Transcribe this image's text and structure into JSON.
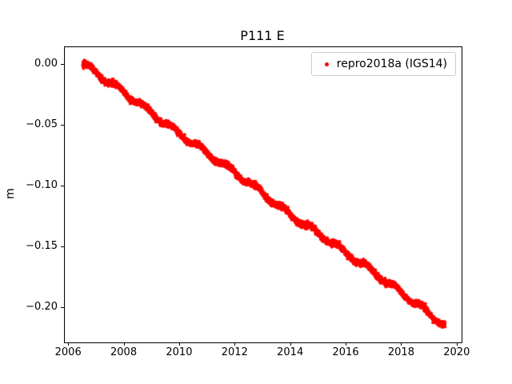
{
  "chart_data": {
    "type": "scatter",
    "title": "P111 E",
    "xlabel": "",
    "ylabel": "m",
    "xlim": [
      2005.85,
      2020.15
    ],
    "ylim": [
      -0.2285,
      0.0145
    ],
    "grid": false,
    "legend_position": "upper right",
    "xticks": {
      "values": [
        2006,
        2008,
        2010,
        2012,
        2014,
        2016,
        2018,
        2020
      ],
      "labels": [
        "2006",
        "2008",
        "2010",
        "2012",
        "2014",
        "2016",
        "2018",
        "2020"
      ]
    },
    "yticks": {
      "values": [
        0.0,
        -0.05,
        -0.1,
        -0.15,
        -0.2
      ],
      "labels": [
        "0.00",
        "−0.05",
        "−0.10",
        "−0.15",
        "−0.20"
      ]
    },
    "series": [
      {
        "name": "repro2018a (IGS14)",
        "color": "#ff0000",
        "marker": "dot",
        "x_start": 2006.5,
        "x_end": 2019.55,
        "samples_per_year": 365,
        "noise_sigma_m": 0.0012,
        "seasonal_amplitude_m": 0.002,
        "trend_slope_m_per_year": -0.01662,
        "anchor_points": [
          [
            2006.5,
            0.001
          ],
          [
            2007.0,
            -0.007
          ],
          [
            2008.0,
            -0.023
          ],
          [
            2009.0,
            -0.04
          ],
          [
            2010.0,
            -0.057
          ],
          [
            2011.0,
            -0.073
          ],
          [
            2012.0,
            -0.089
          ],
          [
            2013.0,
            -0.106
          ],
          [
            2014.0,
            -0.124
          ],
          [
            2015.0,
            -0.139
          ],
          [
            2016.0,
            -0.155
          ],
          [
            2017.0,
            -0.171
          ],
          [
            2018.0,
            -0.188
          ],
          [
            2019.0,
            -0.205
          ],
          [
            2019.55,
            -0.2145
          ]
        ]
      }
    ]
  }
}
